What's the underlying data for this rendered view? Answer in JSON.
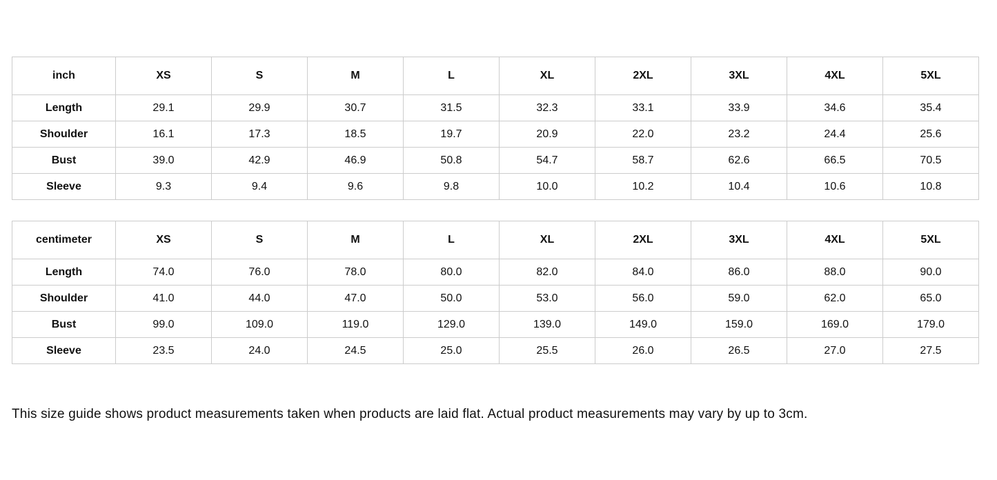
{
  "colors": {
    "background": "#ffffff",
    "table_border": "#cccccc",
    "text": "#111111"
  },
  "tables": [
    {
      "unit_label": "inch",
      "sizes": [
        "XS",
        "S",
        "M",
        "L",
        "XL",
        "2XL",
        "3XL",
        "4XL",
        "5XL"
      ],
      "rows": [
        {
          "label": "Length",
          "values": [
            "29.1",
            "29.9",
            "30.7",
            "31.5",
            "32.3",
            "33.1",
            "33.9",
            "34.6",
            "35.4"
          ]
        },
        {
          "label": "Shoulder",
          "values": [
            "16.1",
            "17.3",
            "18.5",
            "19.7",
            "20.9",
            "22.0",
            "23.2",
            "24.4",
            "25.6"
          ]
        },
        {
          "label": "Bust",
          "values": [
            "39.0",
            "42.9",
            "46.9",
            "50.8",
            "54.7",
            "58.7",
            "62.6",
            "66.5",
            "70.5"
          ]
        },
        {
          "label": "Sleeve",
          "values": [
            "9.3",
            "9.4",
            "9.6",
            "9.8",
            "10.0",
            "10.2",
            "10.4",
            "10.6",
            "10.8"
          ]
        }
      ]
    },
    {
      "unit_label": "centimeter",
      "sizes": [
        "XS",
        "S",
        "M",
        "L",
        "XL",
        "2XL",
        "3XL",
        "4XL",
        "5XL"
      ],
      "rows": [
        {
          "label": "Length",
          "values": [
            "74.0",
            "76.0",
            "78.0",
            "80.0",
            "82.0",
            "84.0",
            "86.0",
            "88.0",
            "90.0"
          ]
        },
        {
          "label": "Shoulder",
          "values": [
            "41.0",
            "44.0",
            "47.0",
            "50.0",
            "53.0",
            "56.0",
            "59.0",
            "62.0",
            "65.0"
          ]
        },
        {
          "label": "Bust",
          "values": [
            "99.0",
            "109.0",
            "119.0",
            "129.0",
            "139.0",
            "149.0",
            "159.0",
            "169.0",
            "179.0"
          ]
        },
        {
          "label": "Sleeve",
          "values": [
            "23.5",
            "24.0",
            "24.5",
            "25.0",
            "25.5",
            "26.0",
            "26.5",
            "27.0",
            "27.5"
          ]
        }
      ]
    }
  ],
  "footer": {
    "note": "This size guide shows product measurements taken when products are laid flat. Actual product measurements may vary by up to 3cm."
  }
}
